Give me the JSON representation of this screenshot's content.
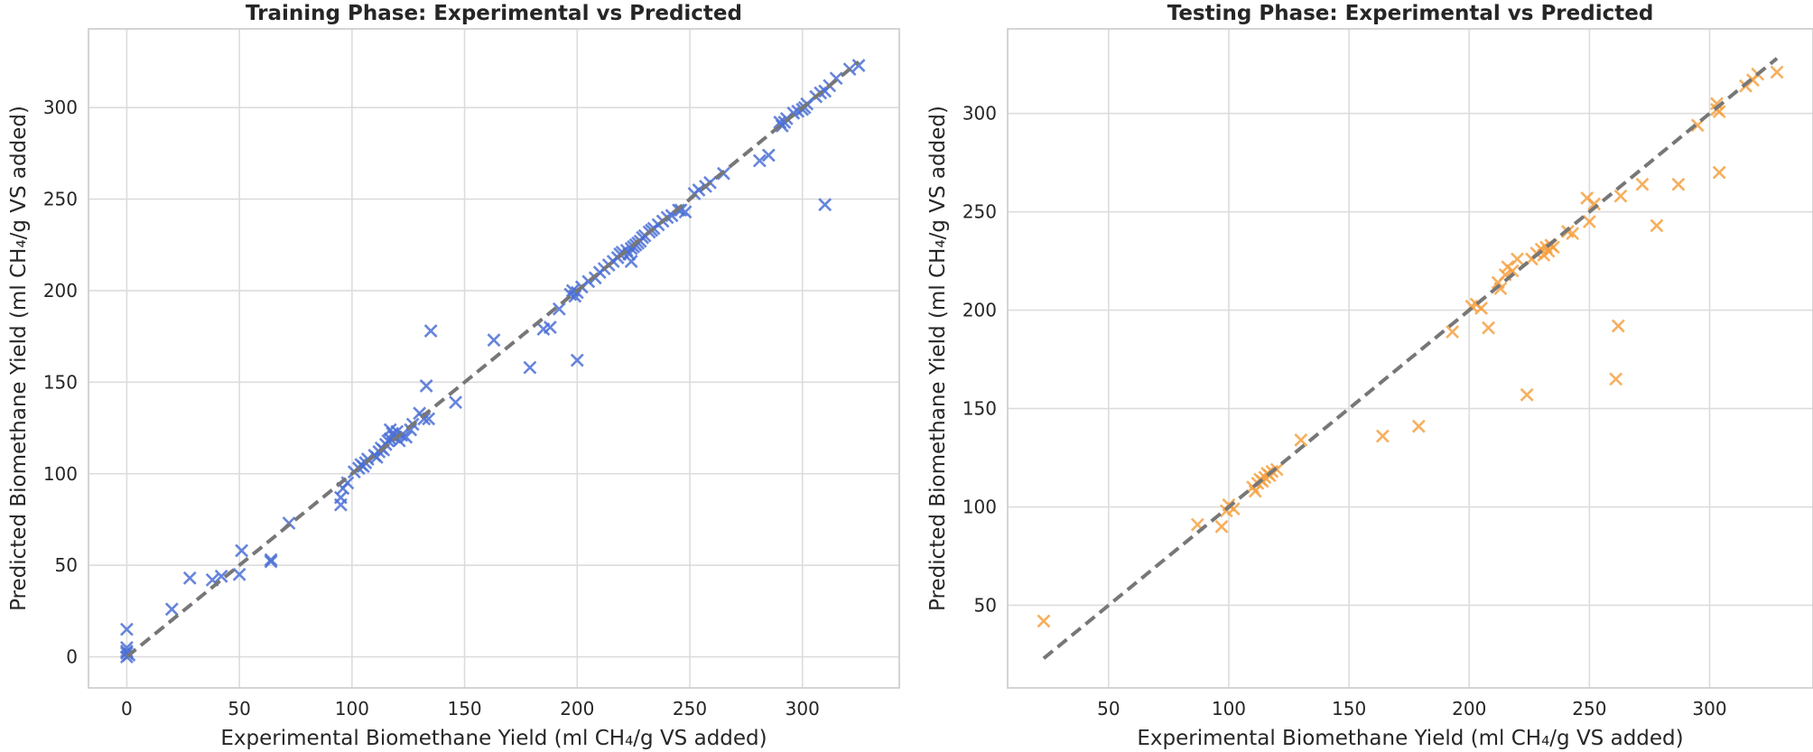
{
  "chart_data": [
    {
      "type": "scatter",
      "title": "Training Phase: Experimental vs Predicted",
      "xlabel": "Experimental Biomethane Yield (ml CH₄/g VS added)",
      "ylabel": "Predicted Biomethane Yield (ml CH₄/g VS added)",
      "xlim": [
        -17,
        343
      ],
      "ylim": [
        -17,
        343
      ],
      "xticks": [
        0,
        50,
        100,
        150,
        200,
        250,
        300
      ],
      "yticks": [
        0,
        50,
        100,
        150,
        200,
        250,
        300
      ],
      "grid": true,
      "marker": "x",
      "color": "#4a6fd6",
      "line": "identity",
      "line_color": "#777777",
      "line_range": [
        0,
        325
      ],
      "series": [
        {
          "x": [
            0,
            0,
            0,
            0,
            1,
            0,
            20,
            28,
            38,
            42,
            50,
            51,
            64,
            64,
            72,
            95,
            95,
            96,
            98,
            101,
            103,
            104,
            105,
            106,
            107,
            110,
            111,
            112,
            113,
            114,
            115,
            116,
            117,
            117,
            118,
            119,
            120,
            121,
            122,
            124,
            126,
            127,
            130,
            132,
            133,
            134,
            135,
            146,
            163,
            179,
            185,
            188,
            192,
            197,
            198,
            199,
            200,
            200,
            202,
            205,
            208,
            210,
            212,
            214,
            216,
            218,
            219,
            220,
            222,
            223,
            224,
            224,
            225,
            226,
            227,
            228,
            229,
            230,
            232,
            233,
            234,
            236,
            238,
            240,
            242,
            245,
            246,
            248,
            252,
            254,
            257,
            259,
            265,
            281,
            285,
            290,
            291,
            292,
            293,
            296,
            298,
            300,
            301,
            302,
            306,
            308,
            310,
            310,
            312,
            315,
            321,
            325
          ],
          "y": [
            15,
            5,
            3,
            2,
            1,
            0,
            26,
            43,
            42,
            44,
            45,
            58,
            52,
            53,
            73,
            83,
            87,
            92,
            95,
            101,
            103,
            105,
            104,
            106,
            108,
            110,
            109,
            112,
            114,
            113,
            116,
            118,
            119,
            124,
            122,
            120,
            123,
            118,
            121,
            120,
            124,
            127,
            133,
            130,
            148,
            130,
            178,
            139,
            173,
            158,
            179,
            180,
            190,
            198,
            200,
            197,
            162,
            199,
            202,
            205,
            207,
            210,
            212,
            214,
            216,
            218,
            220,
            221,
            222,
            220,
            223,
            216,
            224,
            225,
            226,
            227,
            229,
            230,
            232,
            233,
            234,
            236,
            238,
            240,
            241,
            244,
            244,
            243,
            253,
            255,
            257,
            259,
            264,
            271,
            274,
            292,
            290,
            292,
            294,
            297,
            298,
            299,
            300,
            302,
            306,
            308,
            309,
            247,
            312,
            316,
            321,
            323
          ]
        }
      ]
    },
    {
      "type": "scatter",
      "title": "Testing Phase: Experimental vs Predicted",
      "xlabel": "Experimental Biomethane Yield (ml CH₄/g VS added)",
      "ylabel": "Predicted Biomethane Yield (ml CH₄/g VS added)",
      "xlim": [
        8,
        343
      ],
      "ylim": [
        8,
        343
      ],
      "xticks": [
        50,
        100,
        150,
        200,
        250,
        300
      ],
      "yticks": [
        50,
        100,
        150,
        200,
        250,
        300
      ],
      "grid": true,
      "marker": "x",
      "color": "#f5a142",
      "line": "identity",
      "line_color": "#777777",
      "line_range": [
        23,
        328
      ],
      "series": [
        {
          "x": [
            23,
            87,
            97,
            99,
            100,
            102,
            110,
            111,
            112,
            113,
            114,
            115,
            116,
            117,
            118,
            120,
            130,
            164,
            179,
            193,
            201,
            203,
            205,
            208,
            212,
            213,
            215,
            216,
            218,
            220,
            224,
            226,
            228,
            230,
            231,
            232,
            233,
            234,
            235,
            241,
            243,
            249,
            250,
            252,
            261,
            262,
            263,
            272,
            278,
            287,
            295,
            303,
            303,
            304,
            304,
            315,
            318,
            320,
            328
          ],
          "y": [
            42,
            91,
            90,
            98,
            101,
            99,
            110,
            108,
            112,
            114,
            113,
            115,
            117,
            116,
            118,
            119,
            134,
            136,
            141,
            189,
            202,
            203,
            201,
            191,
            214,
            211,
            218,
            222,
            220,
            226,
            157,
            226,
            229,
            231,
            228,
            232,
            230,
            233,
            232,
            240,
            239,
            257,
            245,
            254,
            165,
            192,
            258,
            264,
            243,
            264,
            294,
            305,
            302,
            270,
            301,
            314,
            317,
            320,
            321
          ]
        }
      ]
    }
  ]
}
